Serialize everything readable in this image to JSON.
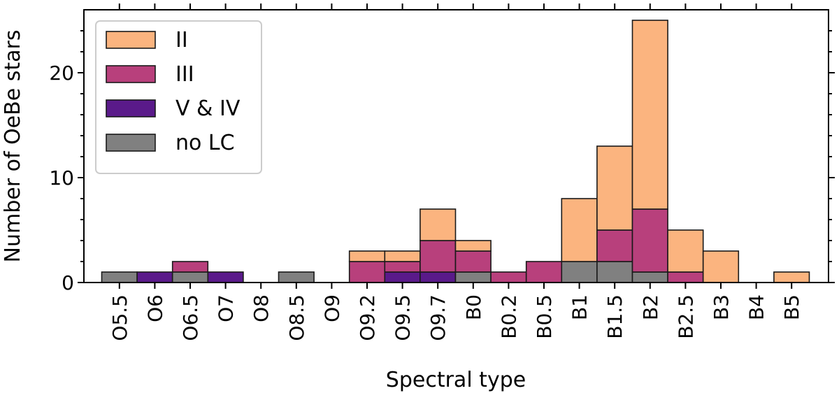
{
  "chart_data": {
    "type": "bar",
    "stacked": true,
    "title": "",
    "xlabel": "Spectral type",
    "ylabel": "Number of OeBe stars",
    "ylim": [
      0,
      26
    ],
    "yticks": [
      0,
      10,
      20
    ],
    "grid": false,
    "legend_position": "top-left",
    "categories": [
      "O5.5",
      "O6",
      "O6.5",
      "O7",
      "O8",
      "O8.5",
      "O9",
      "O9.2",
      "O9.5",
      "O9.7",
      "B0",
      "B0.2",
      "B0.5",
      "B1",
      "B1.5",
      "B2",
      "B2.5",
      "B3",
      "B4",
      "B5"
    ],
    "series": [
      {
        "name": "no LC",
        "color": "#808080",
        "values": [
          1,
          0,
          1,
          0,
          0,
          1,
          0,
          0,
          0,
          0,
          1,
          0,
          0,
          2,
          2,
          1,
          0,
          0,
          0,
          0
        ]
      },
      {
        "name": "V & IV",
        "color": "#5a1a8a",
        "values": [
          0,
          1,
          0,
          1,
          0,
          0,
          0,
          0,
          1,
          1,
          0,
          0,
          0,
          0,
          0,
          0,
          0,
          0,
          0,
          0
        ]
      },
      {
        "name": "III",
        "color": "#b8407c",
        "values": [
          0,
          0,
          1,
          0,
          0,
          0,
          0,
          2,
          1,
          3,
          2,
          1,
          2,
          0,
          3,
          6,
          1,
          0,
          0,
          0
        ]
      },
      {
        "name": "II",
        "color": "#fbb47f",
        "values": [
          0,
          0,
          0,
          0,
          0,
          0,
          0,
          1,
          1,
          3,
          1,
          0,
          0,
          6,
          8,
          18,
          4,
          3,
          0,
          1
        ]
      }
    ],
    "legend_order": [
      "II",
      "III",
      "V & IV",
      "no LC"
    ]
  }
}
